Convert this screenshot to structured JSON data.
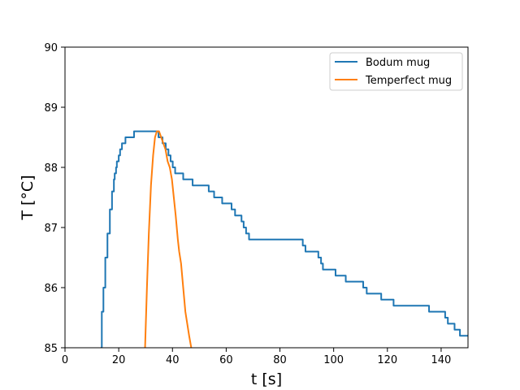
{
  "chart_data": {
    "type": "line",
    "title": "",
    "xlabel": "t [s]",
    "ylabel": "T [°C]",
    "xlim": [
      0,
      150
    ],
    "ylim": [
      85,
      90
    ],
    "xticks": [
      0,
      20,
      40,
      60,
      80,
      100,
      120,
      140
    ],
    "yticks": [
      85,
      86,
      87,
      88,
      89,
      90
    ],
    "grid": false,
    "legend_position": "upper right",
    "series": [
      {
        "name": "Bodum mug",
        "color": "#1f77b4",
        "step": true,
        "x": [
          13.3,
          13.7,
          14.3,
          15.0,
          15.8,
          16.7,
          17.5,
          18.2,
          18.5,
          19.0,
          19.3,
          20.0,
          20.5,
          21.2,
          22.0,
          22.5,
          23.8,
          24.8,
          25.7,
          27.8,
          33.0,
          34.8,
          35.8,
          36.3,
          37.5,
          38.5,
          39.3,
          40.1,
          41.0,
          42.5,
          44.0,
          47.5,
          53.5,
          55.5,
          58.5,
          62.0,
          63.3,
          65.7,
          66.5,
          67.4,
          68.5,
          70.5,
          72.0,
          88.5,
          89.5,
          90.3,
          94.3,
          95.3,
          96.0,
          97.3,
          100.7,
          104.5,
          109.8,
          111.0,
          112.3,
          113.3,
          117.7,
          122.3,
          128.3,
          135.5,
          141.5,
          142.5,
          143.5,
          145.0,
          147.0,
          149.0,
          150.0
        ],
        "y": [
          85.0,
          85.6,
          86.0,
          86.5,
          86.9,
          87.3,
          87.6,
          87.8,
          87.9,
          88.0,
          88.1,
          88.2,
          88.3,
          88.4,
          88.4,
          88.5,
          88.5,
          88.5,
          88.6,
          88.6,
          88.6,
          88.5,
          88.5,
          88.4,
          88.3,
          88.2,
          88.1,
          88.0,
          87.9,
          87.9,
          87.8,
          87.7,
          87.6,
          87.5,
          87.4,
          87.3,
          87.2,
          87.1,
          87.0,
          86.9,
          86.8,
          86.8,
          86.8,
          86.7,
          86.6,
          86.6,
          86.5,
          86.4,
          86.3,
          86.3,
          86.2,
          86.1,
          86.1,
          86.0,
          85.9,
          85.9,
          85.8,
          85.7,
          85.7,
          85.6,
          85.5,
          85.4,
          85.4,
          85.3,
          85.2,
          85.2,
          85.2
        ]
      },
      {
        "name": "Temperfect mug",
        "color": "#ff7f0e",
        "step": false,
        "x": [
          29.8,
          30.5,
          31.2,
          32.0,
          32.8,
          33.5,
          34.2,
          35.0,
          35.8,
          36.6,
          37.4,
          38.2,
          39.0,
          39.8,
          40.5,
          41.2,
          42.0,
          42.5,
          43.2,
          44.0,
          44.8,
          45.5,
          46.2,
          47.0
        ],
        "y": [
          85.0,
          86.0,
          86.9,
          87.7,
          88.2,
          88.5,
          88.6,
          88.6,
          88.5,
          88.4,
          88.3,
          88.1,
          88.0,
          87.8,
          87.5,
          87.2,
          86.8,
          86.6,
          86.4,
          86.0,
          85.6,
          85.4,
          85.2,
          85.0
        ]
      }
    ]
  }
}
